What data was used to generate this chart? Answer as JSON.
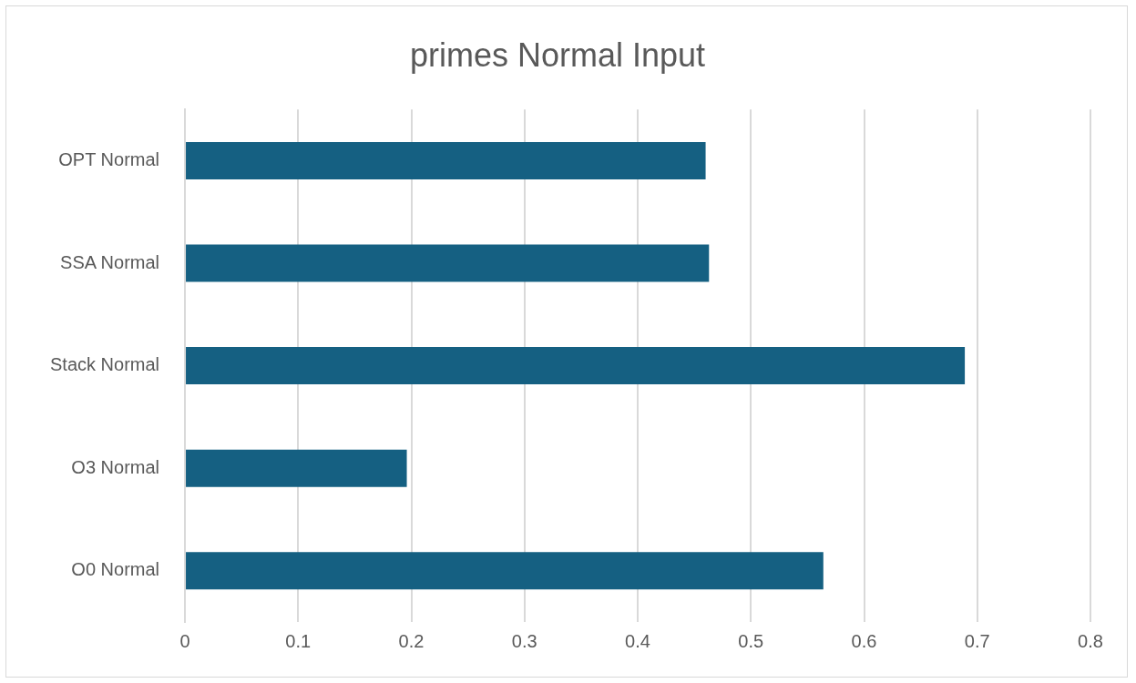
{
  "chart_data": {
    "type": "bar",
    "orientation": "horizontal",
    "title": "primes Normal Input",
    "categories": [
      "OPT Normal",
      "SSA Normal",
      "Stack Normal",
      "O3 Normal",
      "O0 Normal"
    ],
    "values": [
      0.46,
      0.463,
      0.689,
      0.196,
      0.564
    ],
    "color": "#156082",
    "xlim": [
      0,
      0.8
    ],
    "xticks": [
      0,
      0.1,
      0.2,
      0.3,
      0.4,
      0.5,
      0.6,
      0.7,
      0.8
    ],
    "grid": "x",
    "legend": false
  }
}
